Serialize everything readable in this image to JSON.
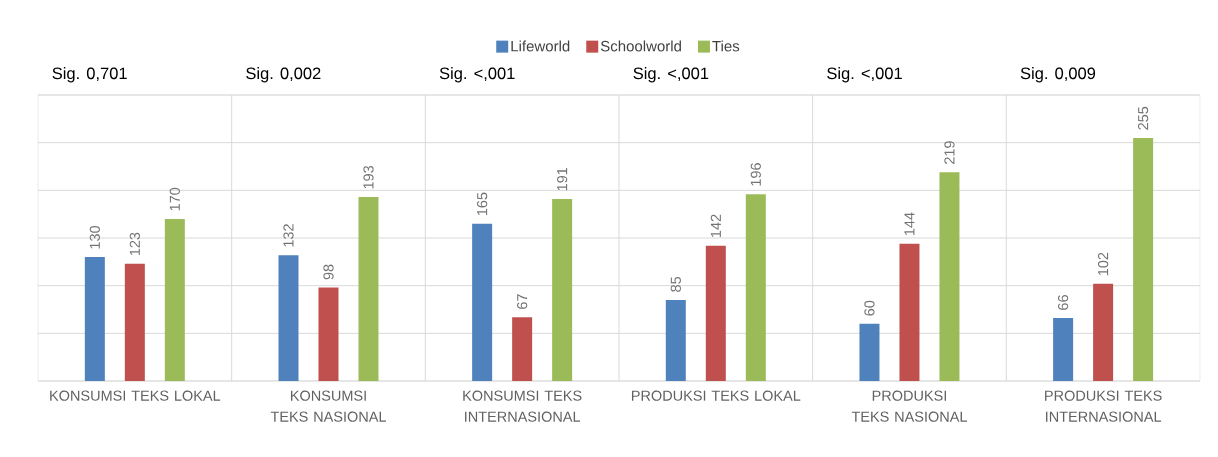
{
  "chart_data": {
    "type": "bar",
    "categories": [
      "KONSUMSI TEKS LOKAL",
      "KONSUMSI TEKS NASIONAL",
      "KONSUMSI TEKS INTERNASIONAL",
      "PRODUKSI TEKS LOKAL",
      "PRODUKSI TEKS NASIONAL",
      "PRODUKSI TEKS INTERNASIONAL"
    ],
    "series": [
      {
        "name": "Lifeworld",
        "color": "#4f81bd",
        "values": [
          130,
          132,
          165,
          85,
          60,
          66
        ]
      },
      {
        "name": "Schoolworld",
        "color": "#c0504d",
        "values": [
          123,
          98,
          67,
          142,
          144,
          102
        ]
      },
      {
        "name": "Ties",
        "color": "#9bbb59",
        "values": [
          170,
          193,
          191,
          196,
          219,
          255
        ]
      }
    ],
    "ylim": [
      0,
      300
    ],
    "yticks": [
      {
        "value": 0,
        "label": null
      },
      {
        "value": 50,
        "label": null
      },
      {
        "value": 100,
        "label": null
      },
      {
        "value": 150,
        "label": null
      },
      {
        "value": 200,
        "label": null
      },
      {
        "value": 250,
        "label": null
      },
      {
        "value": 300,
        "label": null
      }
    ],
    "annotations": [
      "Sig. 0,701",
      "Sig. 0,002",
      "Sig. <,001",
      "Sig. <,001",
      "Sig. <,001",
      "Sig. 0,009"
    ],
    "data_labels": true,
    "grid": true,
    "legend": "top",
    "tick_labels": "x"
  }
}
